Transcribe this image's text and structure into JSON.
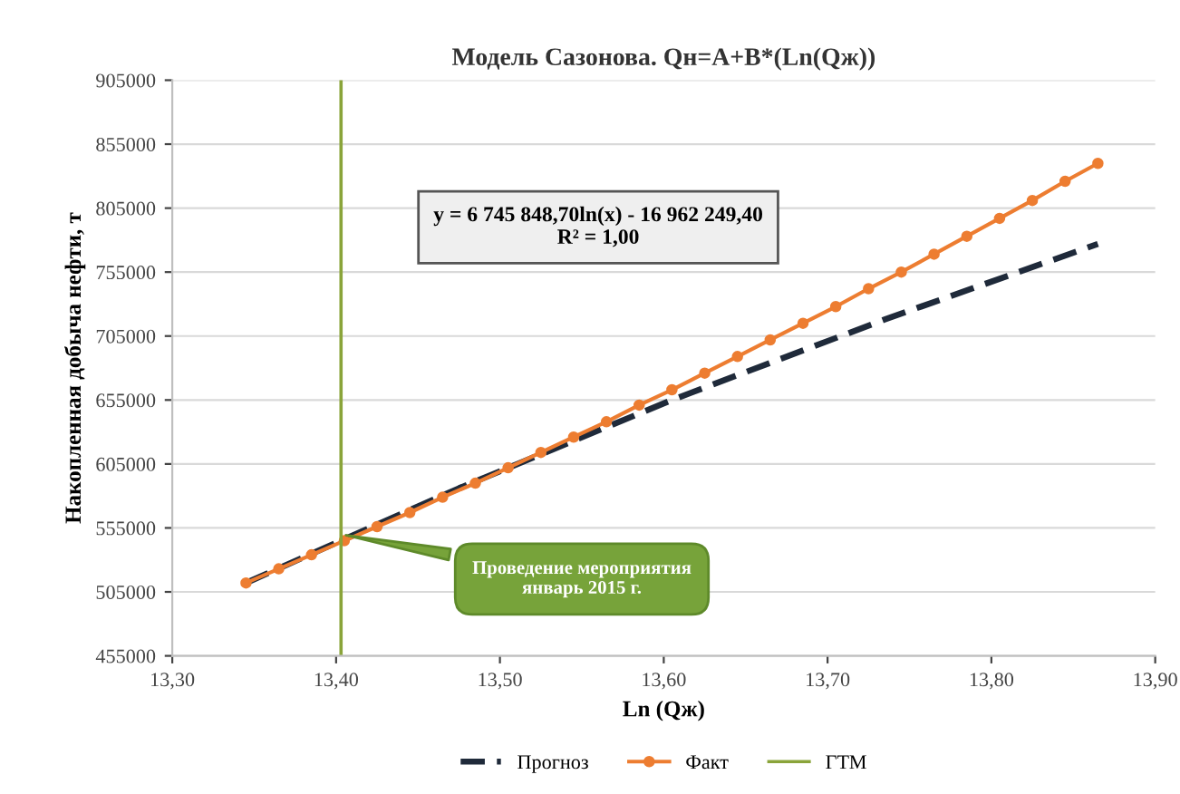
{
  "chart_data": {
    "type": "line",
    "title": "Модель Сазонова. Qн=A+B*(Ln(Qж))",
    "xlabel": "Ln (Qж)",
    "ylabel": "Накопленная добыча нефти, т",
    "xlim": [
      13.3,
      13.9
    ],
    "xticks": [
      {
        "value": 13.3,
        "label": "13,30"
      },
      {
        "value": 13.4,
        "label": "13,40"
      },
      {
        "value": 13.5,
        "label": "13,50"
      },
      {
        "value": 13.6,
        "label": "13,60"
      },
      {
        "value": 13.7,
        "label": "13,70"
      },
      {
        "value": 13.8,
        "label": "13,80"
      },
      {
        "value": 13.9,
        "label": "13,90"
      }
    ],
    "ylim": [
      455000,
      905000
    ],
    "yticks": [
      455000,
      505000,
      555000,
      605000,
      655000,
      705000,
      755000,
      805000,
      855000,
      905000
    ],
    "grid": "y",
    "legend": "bottom",
    "series": [
      {
        "name": "Прогноз",
        "color": "#1f2a3a",
        "line_style": "dashed",
        "marker": "none",
        "x": [
          13.345,
          13.475,
          13.605,
          13.735,
          13.865
        ],
        "values": [
          512000,
          586000,
          655000,
          718000,
          777000
        ]
      },
      {
        "name": "Факт",
        "color": "#ed7d31",
        "line_style": "solid",
        "marker": "circle",
        "x": [
          13.345,
          13.365,
          13.385,
          13.405,
          13.425,
          13.445,
          13.465,
          13.485,
          13.505,
          13.525,
          13.545,
          13.565,
          13.585,
          13.605,
          13.625,
          13.645,
          13.665,
          13.685,
          13.705,
          13.725,
          13.745,
          13.765,
          13.785,
          13.805,
          13.825,
          13.845,
          13.865
        ],
        "values": [
          512000,
          523000,
          534000,
          545000,
          556000,
          567000,
          579000,
          590000,
          602000,
          614000,
          626000,
          638000,
          651000,
          663000,
          676000,
          689000,
          702000,
          715000,
          728000,
          742000,
          755000,
          769000,
          783000,
          797000,
          811000,
          826000,
          840000
        ]
      },
      {
        "name": "ГТМ",
        "color": "#8aa43a",
        "line_style": "solid",
        "marker": "none",
        "x": [
          13.403,
          13.403
        ],
        "values": [
          455000,
          905000
        ]
      }
    ],
    "annotations": [
      "y = 6 745 848,70ln(x) - 16 962 249,40\nR² = 1,00",
      {
        "text": "Проведение мероприятия\nянварь 2015 г.",
        "x": 13.403,
        "y": 550000
      }
    ]
  }
}
